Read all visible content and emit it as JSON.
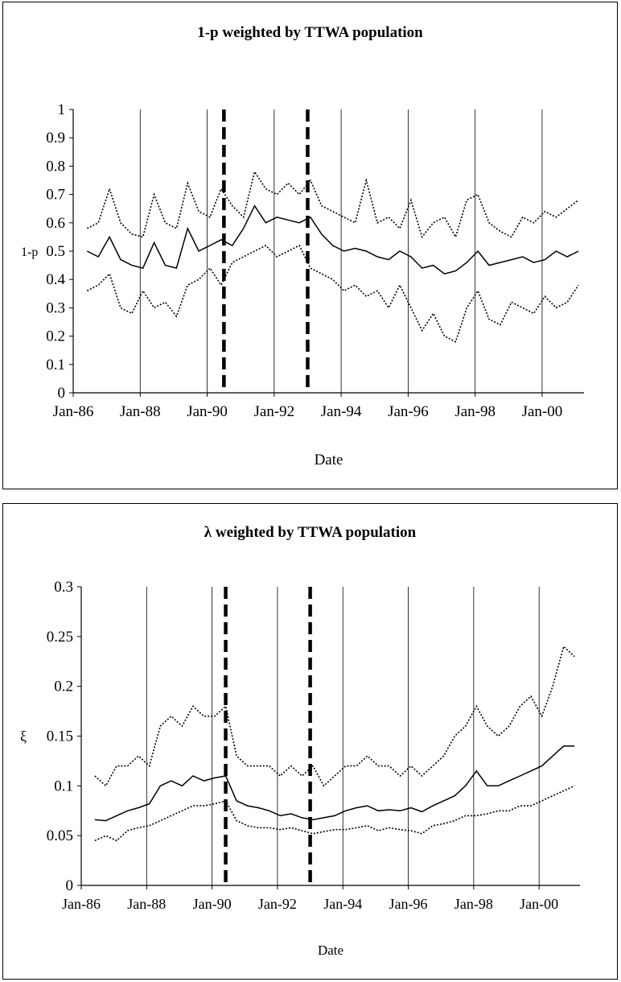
{
  "chart_data": [
    {
      "type": "line",
      "title": "1-p weighted by TTWA population",
      "xlabel": "Date",
      "ylabel": "1-p",
      "ylim": [
        0,
        1
      ],
      "yticks": [
        "0",
        "0.1",
        "0.2",
        "0.3",
        "0.4",
        "0.5",
        "0.6",
        "0.7",
        "0.8",
        "0.9",
        "1"
      ],
      "xticks": [
        "Jan-86",
        "Jan-88",
        "Jan-90",
        "Jan-92",
        "Jan-94",
        "Jan-96",
        "Jan-98",
        "Jan-00"
      ],
      "xrange": [
        "1986-01",
        "2001-04"
      ],
      "vertical_gridlines": true,
      "dashed_markers": [
        "1990-07",
        "1993-01"
      ],
      "series": [
        {
          "style": "dotted",
          "x": [
            "1986-06",
            "1986-10",
            "1987-02",
            "1987-06",
            "1987-10",
            "1988-02",
            "1988-06",
            "1988-10",
            "1989-02",
            "1989-06",
            "1989-10",
            "1990-02",
            "1990-06",
            "1990-10",
            "1991-02",
            "1991-06",
            "1991-10",
            "1992-02",
            "1992-06",
            "1992-10",
            "1993-02",
            "1993-06",
            "1993-10",
            "1994-02",
            "1994-06",
            "1994-10",
            "1995-02",
            "1995-06",
            "1995-10",
            "1996-02",
            "1996-06",
            "1996-10",
            "1997-02",
            "1997-06",
            "1997-10",
            "1998-02",
            "1998-06",
            "1998-10",
            "1999-02",
            "1999-06",
            "1999-10",
            "2000-02",
            "2000-06",
            "2000-10",
            "2001-02"
          ],
          "values": [
            0.58,
            0.6,
            0.72,
            0.6,
            0.56,
            0.55,
            0.7,
            0.6,
            0.58,
            0.74,
            0.64,
            0.62,
            0.72,
            0.66,
            0.62,
            0.78,
            0.72,
            0.7,
            0.74,
            0.7,
            0.75,
            0.66,
            0.64,
            0.62,
            0.6,
            0.75,
            0.6,
            0.62,
            0.58,
            0.68,
            0.55,
            0.6,
            0.62,
            0.55,
            0.68,
            0.7,
            0.6,
            0.57,
            0.55,
            0.62,
            0.6,
            0.64,
            0.62,
            0.65,
            0.68
          ]
        },
        {
          "style": "solid",
          "x": [
            "1986-06",
            "1986-10",
            "1987-02",
            "1987-06",
            "1987-10",
            "1988-02",
            "1988-06",
            "1988-10",
            "1989-02",
            "1989-06",
            "1989-10",
            "1990-02",
            "1990-06",
            "1990-10",
            "1991-02",
            "1991-06",
            "1991-10",
            "1992-02",
            "1992-06",
            "1992-10",
            "1993-02",
            "1993-06",
            "1993-10",
            "1994-02",
            "1994-06",
            "1994-10",
            "1995-02",
            "1995-06",
            "1995-10",
            "1996-02",
            "1996-06",
            "1996-10",
            "1997-02",
            "1997-06",
            "1997-10",
            "1998-02",
            "1998-06",
            "1998-10",
            "1999-02",
            "1999-06",
            "1999-10",
            "2000-02",
            "2000-06",
            "2000-10",
            "2001-02"
          ],
          "values": [
            0.5,
            0.48,
            0.55,
            0.47,
            0.45,
            0.44,
            0.53,
            0.45,
            0.44,
            0.58,
            0.5,
            0.52,
            0.54,
            0.52,
            0.58,
            0.66,
            0.6,
            0.62,
            0.61,
            0.6,
            0.62,
            0.56,
            0.52,
            0.5,
            0.51,
            0.5,
            0.48,
            0.47,
            0.5,
            0.48,
            0.44,
            0.45,
            0.42,
            0.43,
            0.46,
            0.5,
            0.45,
            0.46,
            0.47,
            0.48,
            0.46,
            0.47,
            0.5,
            0.48,
            0.5
          ]
        },
        {
          "style": "dotted",
          "x": [
            "1986-06",
            "1986-10",
            "1987-02",
            "1987-06",
            "1987-10",
            "1988-02",
            "1988-06",
            "1988-10",
            "1989-02",
            "1989-06",
            "1989-10",
            "1990-02",
            "1990-06",
            "1990-10",
            "1991-02",
            "1991-06",
            "1991-10",
            "1992-02",
            "1992-06",
            "1992-10",
            "1993-02",
            "1993-06",
            "1993-10",
            "1994-02",
            "1994-06",
            "1994-10",
            "1995-02",
            "1995-06",
            "1995-10",
            "1996-02",
            "1996-06",
            "1996-10",
            "1997-02",
            "1997-06",
            "1997-10",
            "1998-02",
            "1998-06",
            "1998-10",
            "1999-02",
            "1999-06",
            "1999-10",
            "2000-02",
            "2000-06",
            "2000-10",
            "2001-02"
          ],
          "values": [
            0.36,
            0.38,
            0.42,
            0.3,
            0.28,
            0.36,
            0.3,
            0.32,
            0.27,
            0.38,
            0.4,
            0.44,
            0.38,
            0.46,
            0.48,
            0.5,
            0.52,
            0.48,
            0.5,
            0.52,
            0.44,
            0.42,
            0.4,
            0.36,
            0.38,
            0.34,
            0.36,
            0.3,
            0.38,
            0.3,
            0.22,
            0.28,
            0.2,
            0.18,
            0.3,
            0.36,
            0.26,
            0.24,
            0.32,
            0.3,
            0.28,
            0.34,
            0.3,
            0.32,
            0.38
          ]
        }
      ]
    },
    {
      "type": "line",
      "title": "λ weighted by TTWA population",
      "xlabel": "Date",
      "ylabel": "ξ",
      "ylim": [
        0,
        0.3
      ],
      "yticks": [
        "0",
        "0.05",
        "0.1",
        "0.15",
        "0.2",
        "0.25",
        "0.3"
      ],
      "xticks": [
        "Jan-86",
        "Jan-88",
        "Jan-90",
        "Jan-92",
        "Jan-94",
        "Jan-96",
        "Jan-98",
        "Jan-00"
      ],
      "xrange": [
        "1986-01",
        "2001-04"
      ],
      "vertical_gridlines": true,
      "dashed_markers": [
        "1990-06",
        "1993-01"
      ],
      "series": [
        {
          "style": "dotted",
          "x": [
            "1986-06",
            "1986-10",
            "1987-02",
            "1987-06",
            "1987-10",
            "1988-02",
            "1988-06",
            "1988-10",
            "1989-02",
            "1989-06",
            "1989-10",
            "1990-02",
            "1990-06",
            "1990-10",
            "1991-02",
            "1991-06",
            "1991-10",
            "1992-02",
            "1992-06",
            "1992-10",
            "1993-02",
            "1993-06",
            "1993-10",
            "1994-02",
            "1994-06",
            "1994-10",
            "1995-02",
            "1995-06",
            "1995-10",
            "1996-02",
            "1996-06",
            "1996-10",
            "1997-02",
            "1997-06",
            "1997-10",
            "1998-02",
            "1998-06",
            "1998-10",
            "1999-02",
            "1999-06",
            "1999-10",
            "2000-02",
            "2000-06",
            "2000-10",
            "2001-02"
          ],
          "values": [
            0.11,
            0.1,
            0.12,
            0.12,
            0.13,
            0.12,
            0.16,
            0.17,
            0.16,
            0.18,
            0.17,
            0.17,
            0.18,
            0.13,
            0.12,
            0.12,
            0.12,
            0.11,
            0.12,
            0.11,
            0.12,
            0.1,
            0.11,
            0.12,
            0.12,
            0.13,
            0.12,
            0.12,
            0.11,
            0.12,
            0.11,
            0.12,
            0.13,
            0.15,
            0.16,
            0.18,
            0.16,
            0.15,
            0.16,
            0.18,
            0.19,
            0.17,
            0.2,
            0.24,
            0.23
          ]
        },
        {
          "style": "solid",
          "x": [
            "1986-06",
            "1986-10",
            "1987-02",
            "1987-06",
            "1987-10",
            "1988-02",
            "1988-06",
            "1988-10",
            "1989-02",
            "1989-06",
            "1989-10",
            "1990-02",
            "1990-06",
            "1990-10",
            "1991-02",
            "1991-06",
            "1991-10",
            "1992-02",
            "1992-06",
            "1992-10",
            "1993-02",
            "1993-06",
            "1993-10",
            "1994-02",
            "1994-06",
            "1994-10",
            "1995-02",
            "1995-06",
            "1995-10",
            "1996-02",
            "1996-06",
            "1996-10",
            "1997-02",
            "1997-06",
            "1997-10",
            "1998-02",
            "1998-06",
            "1998-10",
            "1999-02",
            "1999-06",
            "1999-10",
            "2000-02",
            "2000-06",
            "2000-10",
            "2001-02"
          ],
          "values": [
            0.066,
            0.065,
            0.07,
            0.075,
            0.078,
            0.082,
            0.1,
            0.105,
            0.1,
            0.11,
            0.105,
            0.108,
            0.11,
            0.085,
            0.08,
            0.078,
            0.075,
            0.07,
            0.072,
            0.068,
            0.066,
            0.068,
            0.07,
            0.075,
            0.078,
            0.08,
            0.075,
            0.076,
            0.075,
            0.078,
            0.074,
            0.08,
            0.085,
            0.09,
            0.1,
            0.115,
            0.1,
            0.1,
            0.105,
            0.11,
            0.115,
            0.12,
            0.13,
            0.14,
            0.14
          ]
        },
        {
          "style": "dotted",
          "x": [
            "1986-06",
            "1986-10",
            "1987-02",
            "1987-06",
            "1987-10",
            "1988-02",
            "1988-06",
            "1988-10",
            "1989-02",
            "1989-06",
            "1989-10",
            "1990-02",
            "1990-06",
            "1990-10",
            "1991-02",
            "1991-06",
            "1991-10",
            "1992-02",
            "1992-06",
            "1992-10",
            "1993-02",
            "1993-06",
            "1993-10",
            "1994-02",
            "1994-06",
            "1994-10",
            "1995-02",
            "1995-06",
            "1995-10",
            "1996-02",
            "1996-06",
            "1996-10",
            "1997-02",
            "1997-06",
            "1997-10",
            "1998-02",
            "1998-06",
            "1998-10",
            "1999-02",
            "1999-06",
            "1999-10",
            "2000-02",
            "2000-06",
            "2000-10",
            "2001-02"
          ],
          "values": [
            0.045,
            0.05,
            0.045,
            0.055,
            0.058,
            0.06,
            0.065,
            0.07,
            0.075,
            0.08,
            0.08,
            0.082,
            0.085,
            0.065,
            0.06,
            0.058,
            0.058,
            0.056,
            0.058,
            0.055,
            0.052,
            0.054,
            0.056,
            0.056,
            0.058,
            0.06,
            0.055,
            0.058,
            0.056,
            0.055,
            0.052,
            0.06,
            0.062,
            0.065,
            0.07,
            0.07,
            0.072,
            0.075,
            0.075,
            0.08,
            0.08,
            0.085,
            0.09,
            0.095,
            0.1
          ]
        }
      ]
    }
  ]
}
